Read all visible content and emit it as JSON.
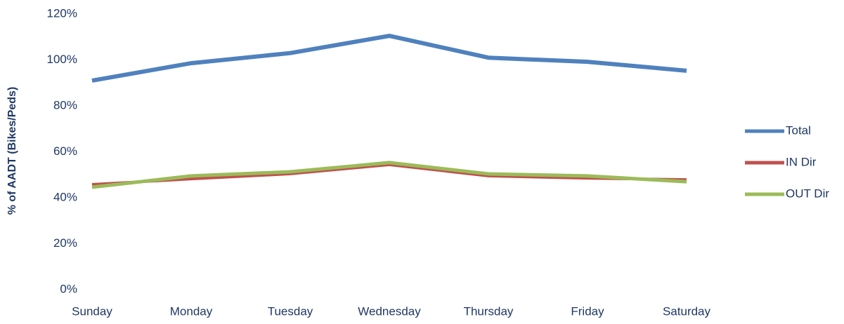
{
  "chart_data": {
    "type": "line",
    "y_axis_label": "% of AADT (Bikes/Peds)",
    "categories": [
      "Sunday",
      "Monday",
      "Tuesday",
      "Wednesday",
      "Thursday",
      "Friday",
      "Saturday"
    ],
    "series": [
      {
        "name": "Total",
        "color": "#4f81bd",
        "values": [
          91,
          98.6,
          103,
          110.5,
          101,
          99.2,
          95.3
        ]
      },
      {
        "name": "IN Dir",
        "color": "#c0504d",
        "values": [
          45.8,
          48.2,
          50.4,
          54.4,
          49.5,
          48.5,
          47.9
        ]
      },
      {
        "name": "OUT Dir",
        "color": "#9bbb59",
        "values": [
          44.6,
          49.5,
          51.3,
          55.3,
          50.4,
          49.5,
          47
        ]
      }
    ],
    "ylim": [
      0,
      120
    ],
    "yticks": [
      {
        "value": 0,
        "label": "0%"
      },
      {
        "value": 20,
        "label": "20%"
      },
      {
        "value": 40,
        "label": "40%"
      },
      {
        "value": 60,
        "label": "60%"
      },
      {
        "value": 80,
        "label": "80%"
      },
      {
        "value": 100,
        "label": "100%"
      },
      {
        "value": 120,
        "label": "120%"
      }
    ],
    "legend": "right"
  }
}
